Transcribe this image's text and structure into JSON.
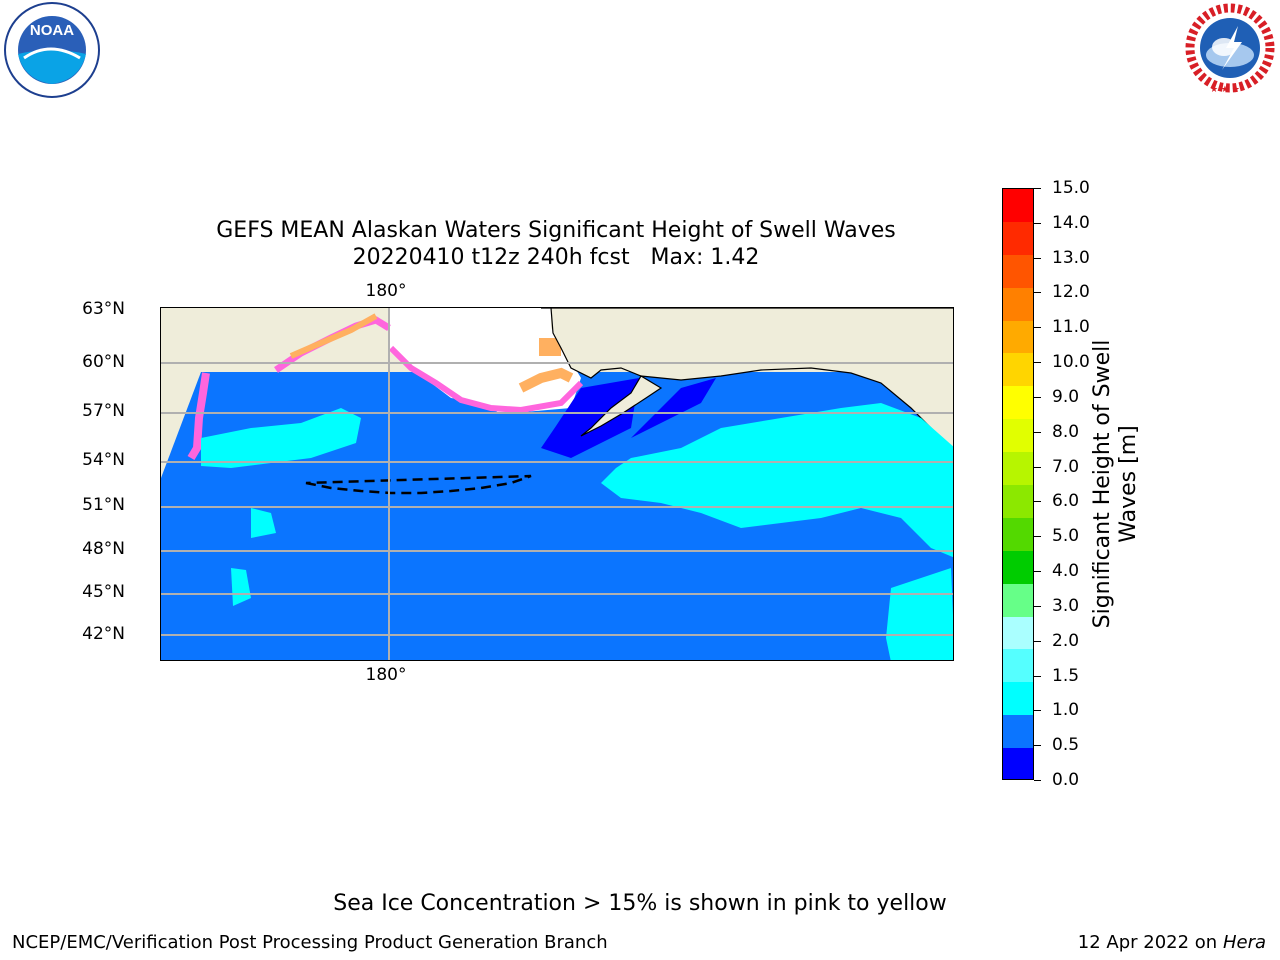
{
  "logos": {
    "left_text": "NOAA",
    "right_text": "NATIONAL WEATHER SERVICE"
  },
  "title": "GEFS MEAN Alaskan Waters Significant Height of Swell Waves",
  "subtitle": "20220410 t12z 240h fcst   Max: 1.42",
  "map": {
    "lat_labels": [
      "63°N",
      "60°N",
      "57°N",
      "54°N",
      "51°N",
      "48°N",
      "45°N",
      "42°N"
    ],
    "lon_label_top": "180°",
    "lon_label_bottom": "180°",
    "colors": {
      "land": "#efedda",
      "ocean_main": "#0b75ff",
      "ocean_light": "#00ffff",
      "ocean_deep": "#0000ff",
      "ice_white": "#ffffff",
      "ice_pink": "#ff66dd",
      "ice_orange": "#ffb060",
      "grid": "#b0b0b0"
    }
  },
  "colorbar": {
    "label": "Significant Height of Swell Waves [m]",
    "label_line1": "Significant Height of Swell",
    "label_line2": "Waves [m]",
    "ticks": [
      "15.0",
      "14.0",
      "13.0",
      "12.0",
      "11.0",
      "10.0",
      "9.0",
      "8.0",
      "7.0",
      "6.0",
      "5.0",
      "4.0",
      "3.0",
      "2.0",
      "1.5",
      "1.0",
      "0.5",
      "0.0"
    ],
    "colors_top_to_bottom": [
      "#ff0000",
      "#ff2a00",
      "#ff5500",
      "#ff8000",
      "#ffaa00",
      "#ffd500",
      "#ffff00",
      "#e1ff00",
      "#b7f500",
      "#8ce800",
      "#53d900",
      "#00cc00",
      "#66ff88",
      "#aaffff",
      "#55ffff",
      "#00ffff",
      "#0b75ff",
      "#0000ff"
    ]
  },
  "footer": {
    "note": "Sea Ice Concentration > 15% is shown in pink to yellow",
    "credit": "NCEP/EMC/Verification Post Processing Product Generation Branch",
    "date": "12 Apr 2022 on ",
    "host": "Hera"
  }
}
